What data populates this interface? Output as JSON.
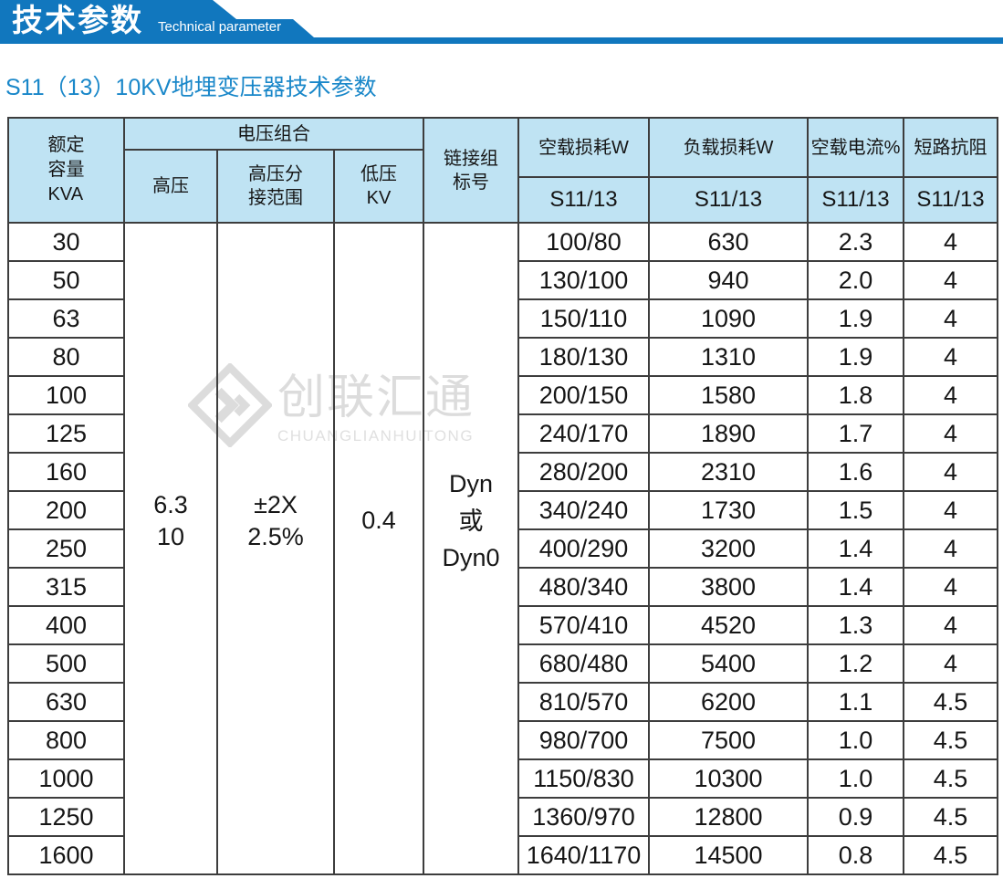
{
  "banner": {
    "title_cn": "技术参数",
    "title_en": "Technical parameter",
    "bg_color": "#1177be"
  },
  "page_title": "S11（13）10KV地埋变压器技术参数",
  "watermark": {
    "logo": "diamond-gem-logo",
    "name_cn": "创联汇通",
    "name_en": "CHUANGLIANHUITONG"
  },
  "table": {
    "header": {
      "capacity_lines": [
        "额定",
        "容量",
        "KVA"
      ],
      "voltage_group": "电压组合",
      "hv": "高压",
      "hv_tap_lines": [
        "高压分",
        "接范围"
      ],
      "lv_lines": [
        "低压",
        "KV"
      ],
      "connection_lines": [
        "链接组",
        "标号"
      ],
      "no_load_loss": "空载损耗W",
      "load_loss": "负载损耗W",
      "no_load_current": "空载电流%",
      "impedance": "短路抗阻",
      "sub_label": "S11/13"
    },
    "merged": {
      "hv_lines": [
        "6.3",
        "10"
      ],
      "hv_tap_lines": [
        "±2X",
        "2.5%"
      ],
      "lv": "0.4",
      "connection_lines": [
        "Dyn",
        "或",
        "Dyn0"
      ]
    },
    "rows": [
      {
        "capacity": "30",
        "no_load_loss": "100/80",
        "load_loss": "630",
        "no_load_current": "2.3",
        "impedance": "4"
      },
      {
        "capacity": "50",
        "no_load_loss": "130/100",
        "load_loss": "940",
        "no_load_current": "2.0",
        "impedance": "4"
      },
      {
        "capacity": "63",
        "no_load_loss": "150/110",
        "load_loss": "1090",
        "no_load_current": "1.9",
        "impedance": "4"
      },
      {
        "capacity": "80",
        "no_load_loss": "180/130",
        "load_loss": "1310",
        "no_load_current": "1.9",
        "impedance": "4"
      },
      {
        "capacity": "100",
        "no_load_loss": "200/150",
        "load_loss": "1580",
        "no_load_current": "1.8",
        "impedance": "4"
      },
      {
        "capacity": "125",
        "no_load_loss": "240/170",
        "load_loss": "1890",
        "no_load_current": "1.7",
        "impedance": "4"
      },
      {
        "capacity": "160",
        "no_load_loss": "280/200",
        "load_loss": "2310",
        "no_load_current": "1.6",
        "impedance": "4"
      },
      {
        "capacity": "200",
        "no_load_loss": "340/240",
        "load_loss": "1730",
        "no_load_current": "1.5",
        "impedance": "4"
      },
      {
        "capacity": "250",
        "no_load_loss": "400/290",
        "load_loss": "3200",
        "no_load_current": "1.4",
        "impedance": "4"
      },
      {
        "capacity": "315",
        "no_load_loss": "480/340",
        "load_loss": "3800",
        "no_load_current": "1.4",
        "impedance": "4"
      },
      {
        "capacity": "400",
        "no_load_loss": "570/410",
        "load_loss": "4520",
        "no_load_current": "1.3",
        "impedance": "4"
      },
      {
        "capacity": "500",
        "no_load_loss": "680/480",
        "load_loss": "5400",
        "no_load_current": "1.2",
        "impedance": "4"
      },
      {
        "capacity": "630",
        "no_load_loss": "810/570",
        "load_loss": "6200",
        "no_load_current": "1.1",
        "impedance": "4.5"
      },
      {
        "capacity": "800",
        "no_load_loss": "980/700",
        "load_loss": "7500",
        "no_load_current": "1.0",
        "impedance": "4.5"
      },
      {
        "capacity": "1000",
        "no_load_loss": "1150/830",
        "load_loss": "10300",
        "no_load_current": "1.0",
        "impedance": "4.5"
      },
      {
        "capacity": "1250",
        "no_load_loss": "1360/970",
        "load_loss": "12800",
        "no_load_current": "0.9",
        "impedance": "4.5"
      },
      {
        "capacity": "1600",
        "no_load_loss": "1640/1170",
        "load_loss": "14500",
        "no_load_current": "0.8",
        "impedance": "4.5"
      }
    ]
  }
}
